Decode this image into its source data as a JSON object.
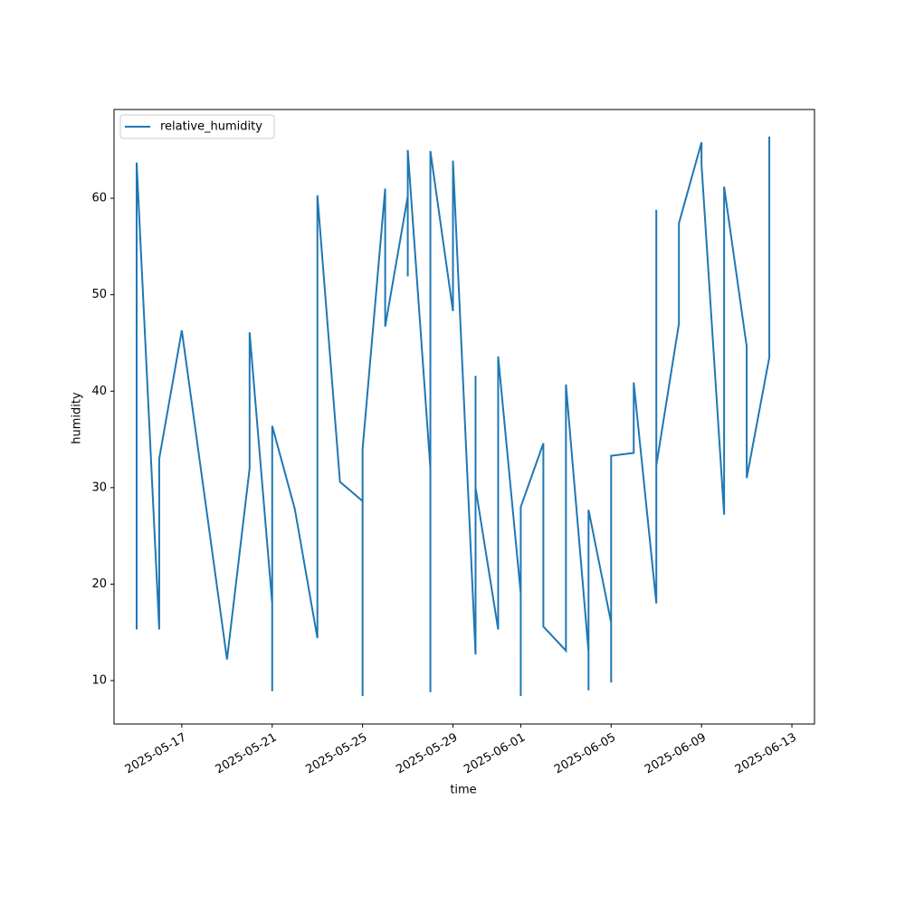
{
  "chart_data": {
    "type": "line",
    "x_label": "time",
    "y_label": "humidity",
    "x": [
      "2025-05-15",
      "2025-05-15",
      "2025-05-15",
      "2025-05-16",
      "2025-05-16",
      "2025-05-17",
      "2025-05-19",
      "2025-05-20",
      "2025-05-20",
      "2025-05-21",
      "2025-05-21",
      "2025-05-21",
      "2025-05-21",
      "2025-05-22",
      "2025-05-23",
      "2025-05-23",
      "2025-05-23",
      "2025-05-23",
      "2025-05-24",
      "2025-05-25",
      "2025-05-25",
      "2025-05-25",
      "2025-05-26",
      "2025-05-26",
      "2025-05-27",
      "2025-05-27",
      "2025-05-27",
      "2025-05-28",
      "2025-05-28",
      "2025-05-28",
      "2025-05-28",
      "2025-05-29",
      "2025-05-29",
      "2025-05-29",
      "2025-05-30",
      "2025-05-30",
      "2025-05-30",
      "2025-05-30",
      "2025-05-31",
      "2025-05-31",
      "2025-05-31",
      "2025-06-01",
      "2025-06-01",
      "2025-06-01",
      "2025-06-02",
      "2025-06-02",
      "2025-06-02",
      "2025-06-02",
      "2025-06-02",
      "2025-06-03",
      "2025-06-03",
      "2025-06-03",
      "2025-06-04",
      "2025-06-04",
      "2025-06-04",
      "2025-06-05",
      "2025-06-05",
      "2025-06-05",
      "2025-06-06",
      "2025-06-06",
      "2025-06-06",
      "2025-06-07",
      "2025-06-07",
      "2025-06-07",
      "2025-06-07",
      "2025-06-08",
      "2025-06-08",
      "2025-06-08",
      "2025-06-09",
      "2025-06-09",
      "2025-06-10",
      "2025-06-10",
      "2025-06-10",
      "2025-06-10",
      "2025-06-11",
      "2025-06-11",
      "2025-06-12",
      "2025-06-12",
      "2025-06-12"
    ],
    "series": [
      {
        "name": "relative_humidity",
        "color": "#1f77b4",
        "values": [
          15.3,
          23,
          63.7,
          15.3,
          33,
          46.3,
          12.2,
          32,
          46.1,
          18,
          9.8,
          8.9,
          36.4,
          27.8,
          14.4,
          24,
          48,
          60.3,
          30.6,
          28.6,
          8.4,
          34,
          61,
          46.7,
          60.2,
          51.9,
          65,
          32,
          8.8,
          50,
          64.9,
          48.3,
          61,
          63.9,
          12.7,
          13.7,
          41.6,
          30,
          15.3,
          30,
          43.6,
          19,
          8.4,
          28,
          34.6,
          28,
          18.8,
          18.4,
          15.6,
          13.1,
          40,
          40.7,
          13,
          9,
          27.7,
          16,
          9.8,
          33.3,
          33.6,
          38.8,
          40.9,
          18,
          31,
          58.8,
          32.3,
          47,
          53.5,
          57.4,
          65.8,
          63.5,
          27.2,
          38,
          53,
          61.2,
          44.6,
          31,
          43.5,
          51.4,
          66.4
        ]
      }
    ],
    "xlim": [
      "2025-05-14",
      "2025-06-14"
    ],
    "xticks": [
      "2025-05-17",
      "2025-05-21",
      "2025-05-25",
      "2025-05-29",
      "2025-06-01",
      "2025-06-05",
      "2025-06-09",
      "2025-06-13"
    ],
    "ylim": [
      5.5,
      69.2
    ],
    "yticks": [
      10,
      20,
      30,
      40,
      50,
      60
    ],
    "legend": "upper left"
  }
}
